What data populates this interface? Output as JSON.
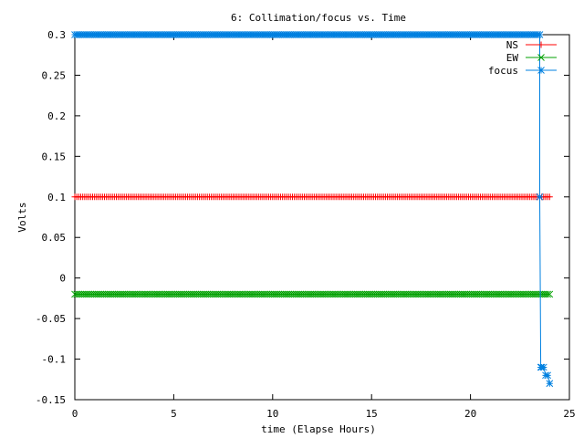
{
  "chart_data": {
    "type": "line",
    "title": "6: Collimation/focus vs. Time",
    "xlabel": "time (Elapse Hours)",
    "ylabel": "Volts",
    "xlim": [
      0,
      25
    ],
    "ylim": [
      -0.15,
      0.3
    ],
    "xticks": [
      0,
      5,
      10,
      15,
      20,
      25
    ],
    "xtick_labels": [
      "0",
      "5",
      "10",
      "15",
      "20",
      "25"
    ],
    "yticks": [
      -0.15,
      -0.1,
      -0.05,
      0,
      0.05,
      0.1,
      0.15,
      0.2,
      0.25,
      0.3
    ],
    "ytick_labels": [
      "-0.15",
      "-0.1",
      "-0.05",
      "0",
      "0.05",
      "0.1",
      "0.15",
      "0.2",
      "0.25",
      "0.3"
    ],
    "grid": false,
    "legend_position": "top-right",
    "series": [
      {
        "name": "NS",
        "color": "#ff0000",
        "marker": "plus",
        "segments": [
          {
            "x_start": 0,
            "x_end": 24.0,
            "step": 0.1,
            "y": 0.1
          }
        ],
        "points": []
      },
      {
        "name": "EW",
        "color": "#00a000",
        "marker": "cross",
        "segments": [
          {
            "x_start": 0,
            "x_end": 24.0,
            "step": 0.1,
            "y": -0.02
          }
        ],
        "points": []
      },
      {
        "name": "focus",
        "color": "#0080e0",
        "marker": "star",
        "segments": [
          {
            "x_start": 0,
            "x_end": 23.5,
            "step": 0.1,
            "y": 0.3
          }
        ],
        "points": [
          [
            23.5,
            0.1
          ],
          [
            23.55,
            -0.11
          ],
          [
            23.6,
            -0.11
          ],
          [
            23.7,
            -0.11
          ],
          [
            23.8,
            -0.12
          ],
          [
            23.9,
            -0.12
          ],
          [
            24.0,
            -0.13
          ]
        ]
      }
    ]
  }
}
